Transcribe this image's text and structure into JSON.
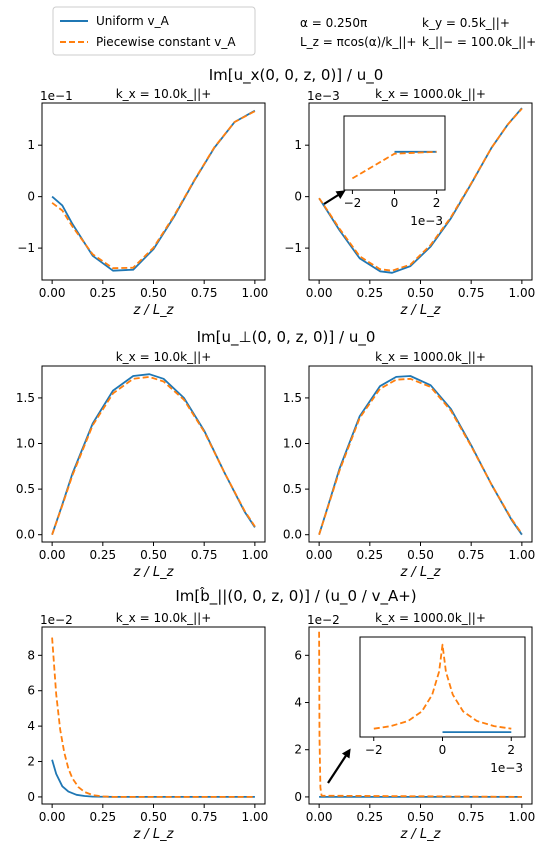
{
  "header": {
    "line1_left": "α = 0.250π",
    "line1_right": "k_y = 0.5k_||+",
    "line2_left": "L_z = πcos(α)/k_||+",
    "line2_right": "k_||− = 100.0k_||+"
  },
  "legend": {
    "placement": "top-left",
    "entries": [
      {
        "label": "Uniform v_A",
        "color": "#1f77b4",
        "style": "solid"
      },
      {
        "label": "Piecewise constant v_A",
        "color": "#ff7f0e",
        "style": "dashed"
      }
    ]
  },
  "row_titles": [
    "Im[u_x(0, 0, z, 0)] / u_0",
    "Im[u_⊥(0, 0, z, 0)] / u_0",
    "Im[b̂_||(0, 0, z, 0)] / (u_0 / v_A+)"
  ],
  "colors": {
    "uniform": "#1f77b4",
    "piecewise": "#ff7f0e"
  },
  "chart_data": [
    {
      "type": "line",
      "title": "k_x = 10.0k_||+",
      "xlabel": "z / L_z",
      "ylabel": "",
      "offset_text": "1e−1",
      "xlim": [
        -0.05,
        1.05
      ],
      "ylim": [
        -1.62,
        1.82
      ],
      "xticks": [
        0,
        0.25,
        0.5,
        0.75,
        1.0
      ],
      "xtick_labels": [
        "0.00",
        "0.25",
        "0.50",
        "0.75",
        "1.00"
      ],
      "yticks": [
        -1,
        0,
        1
      ],
      "ytick_labels": [
        "−1",
        "0",
        "1"
      ],
      "series": [
        {
          "name": "Uniform v_A",
          "x": [
            0,
            0.05,
            0.1,
            0.2,
            0.3,
            0.4,
            0.5,
            0.6,
            0.7,
            0.8,
            0.9,
            1.0
          ],
          "y": [
            0,
            -0.17,
            -0.53,
            -1.15,
            -1.44,
            -1.42,
            -1.02,
            -0.4,
            0.3,
            0.95,
            1.45,
            1.67
          ]
        },
        {
          "name": "Piecewise constant v_A",
          "x": [
            0,
            0.05,
            0.1,
            0.2,
            0.3,
            0.4,
            0.5,
            0.6,
            0.7,
            0.8,
            0.9,
            1.0
          ],
          "y": [
            -0.12,
            -0.27,
            -0.58,
            -1.12,
            -1.39,
            -1.38,
            -0.99,
            -0.38,
            0.31,
            0.96,
            1.45,
            1.66
          ]
        }
      ]
    },
    {
      "type": "line",
      "title": "k_x = 1000.0k_||+",
      "xlabel": "z / L_z",
      "ylabel": "",
      "offset_text": "1e−3",
      "xlim": [
        -0.05,
        1.05
      ],
      "ylim": [
        -1.62,
        1.82
      ],
      "xticks": [
        0,
        0.25,
        0.5,
        0.75,
        1.0
      ],
      "xtick_labels": [
        "0.00",
        "0.25",
        "0.50",
        "0.75",
        "1.00"
      ],
      "yticks": [
        -1,
        0,
        1
      ],
      "ytick_labels": [
        "−1",
        "0",
        "1"
      ],
      "series": [
        {
          "name": "Uniform v_A",
          "x": [
            0,
            0.05,
            0.1,
            0.2,
            0.3,
            0.36,
            0.45,
            0.55,
            0.65,
            0.75,
            0.85,
            0.93,
            1.0
          ],
          "y": [
            -0.03,
            -0.34,
            -0.65,
            -1.2,
            -1.45,
            -1.48,
            -1.35,
            -0.97,
            -0.42,
            0.25,
            0.95,
            1.4,
            1.72
          ]
        },
        {
          "name": "Piecewise constant v_A",
          "x": [
            0,
            0.05,
            0.1,
            0.2,
            0.3,
            0.36,
            0.45,
            0.55,
            0.65,
            0.75,
            0.85,
            0.93,
            1.0
          ],
          "y": [
            -0.03,
            -0.32,
            -0.62,
            -1.16,
            -1.41,
            -1.44,
            -1.32,
            -0.94,
            -0.4,
            0.26,
            0.95,
            1.4,
            1.71
          ]
        }
      ],
      "inset": {
        "xlim": [
          -2.4,
          2.4
        ],
        "ylim": [
          -1.6,
          1.6
        ],
        "xticks": [
          -2,
          0,
          2
        ],
        "xtick_labels": [
          "−2",
          "0",
          "2"
        ],
        "offset_text": "1e−3",
        "series": [
          {
            "name": "Uniform v_A",
            "x": [
              0,
              2
            ],
            "y": [
              0.05,
              0.05
            ]
          },
          {
            "name": "Piecewise constant v_A",
            "x": [
              -2,
              0,
              2
            ],
            "y": [
              -1.1,
              -0.03,
              0.05
            ]
          }
        ]
      }
    },
    {
      "type": "line",
      "title": "k_x = 10.0k_||+",
      "xlabel": "z / L_z",
      "ylabel": "",
      "xlim": [
        -0.05,
        1.05
      ],
      "ylim": [
        -0.08,
        1.85
      ],
      "xticks": [
        0,
        0.25,
        0.5,
        0.75,
        1.0
      ],
      "xtick_labels": [
        "0.00",
        "0.25",
        "0.50",
        "0.75",
        "1.00"
      ],
      "yticks": [
        0,
        0.5,
        1.0,
        1.5
      ],
      "ytick_labels": [
        "0.0",
        "0.5",
        "1.0",
        "1.5"
      ],
      "series": [
        {
          "name": "Uniform v_A",
          "x": [
            0,
            0.05,
            0.1,
            0.2,
            0.3,
            0.4,
            0.48,
            0.55,
            0.65,
            0.75,
            0.85,
            0.95,
            1.0
          ],
          "y": [
            0,
            0.33,
            0.67,
            1.22,
            1.58,
            1.74,
            1.76,
            1.71,
            1.5,
            1.14,
            0.68,
            0.25,
            0.08
          ]
        },
        {
          "name": "Piecewise constant v_A",
          "x": [
            0,
            0.05,
            0.1,
            0.2,
            0.3,
            0.4,
            0.48,
            0.55,
            0.65,
            0.75,
            0.85,
            0.95,
            1.0
          ],
          "y": [
            0,
            0.32,
            0.65,
            1.2,
            1.55,
            1.71,
            1.73,
            1.68,
            1.48,
            1.13,
            0.68,
            0.26,
            0.09
          ]
        }
      ]
    },
    {
      "type": "line",
      "title": "k_x = 1000.0k_||+",
      "xlabel": "z / L_z",
      "ylabel": "",
      "xlim": [
        -0.05,
        1.05
      ],
      "ylim": [
        -0.08,
        1.85
      ],
      "xticks": [
        0,
        0.25,
        0.5,
        0.75,
        1.0
      ],
      "xtick_labels": [
        "0.00",
        "0.25",
        "0.50",
        "0.75",
        "1.00"
      ],
      "yticks": [
        0,
        0.5,
        1.0,
        1.5
      ],
      "ytick_labels": [
        "0.0",
        "0.5",
        "1.0",
        "1.5"
      ],
      "series": [
        {
          "name": "Uniform v_A",
          "x": [
            0,
            0.05,
            0.1,
            0.2,
            0.3,
            0.38,
            0.45,
            0.55,
            0.65,
            0.75,
            0.85,
            0.95,
            1.0
          ],
          "y": [
            0,
            0.36,
            0.72,
            1.3,
            1.63,
            1.73,
            1.74,
            1.64,
            1.38,
            0.98,
            0.55,
            0.16,
            0.0
          ]
        },
        {
          "name": "Piecewise constant v_A",
          "x": [
            0,
            0.05,
            0.1,
            0.2,
            0.3,
            0.38,
            0.45,
            0.55,
            0.65,
            0.75,
            0.85,
            0.95,
            1.0
          ],
          "y": [
            0,
            0.35,
            0.7,
            1.28,
            1.6,
            1.7,
            1.71,
            1.62,
            1.36,
            0.97,
            0.55,
            0.17,
            0.01
          ]
        }
      ]
    },
    {
      "type": "line",
      "title": "k_x = 10.0k_||+",
      "xlabel": "z / L_z",
      "ylabel": "",
      "offset_text": "1e−2",
      "xlim": [
        -0.05,
        1.05
      ],
      "ylim": [
        -0.4,
        9.6
      ],
      "xticks": [
        0,
        0.25,
        0.5,
        0.75,
        1.0
      ],
      "xtick_labels": [
        "0.00",
        "0.25",
        "0.50",
        "0.75",
        "1.00"
      ],
      "yticks": [
        0,
        2,
        4,
        6,
        8
      ],
      "ytick_labels": [
        "0",
        "2",
        "4",
        "6",
        "8"
      ],
      "series": [
        {
          "name": "Uniform v_A",
          "x": [
            0,
            0.02,
            0.05,
            0.08,
            0.12,
            0.16,
            0.2,
            0.3,
            1.0
          ],
          "y": [
            2.1,
            1.3,
            0.6,
            0.3,
            0.12,
            0.05,
            0.02,
            0.0,
            0.0
          ]
        },
        {
          "name": "Piecewise constant v_A",
          "x": [
            0,
            0.02,
            0.04,
            0.06,
            0.08,
            0.1,
            0.13,
            0.16,
            0.2,
            0.25,
            0.3,
            1.0
          ],
          "y": [
            9.0,
            5.8,
            3.8,
            2.5,
            1.6,
            1.05,
            0.55,
            0.28,
            0.1,
            0.03,
            0.0,
            0.0
          ]
        }
      ]
    },
    {
      "type": "line",
      "title": "k_x = 1000.0k_||+",
      "xlabel": "z / L_z",
      "ylabel": "",
      "offset_text": "1e−2",
      "xlim": [
        -0.05,
        1.05
      ],
      "ylim": [
        -0.3,
        7.2
      ],
      "xticks": [
        0,
        0.25,
        0.5,
        0.75,
        1.0
      ],
      "xtick_labels": [
        "0.00",
        "0.25",
        "0.50",
        "0.75",
        "1.00"
      ],
      "yticks": [
        0,
        2,
        4,
        6
      ],
      "ytick_labels": [
        "0",
        "2",
        "4",
        "6"
      ],
      "series": [
        {
          "name": "Uniform v_A",
          "x": [
            0,
            1.0
          ],
          "y": [
            0.0,
            0.0
          ]
        },
        {
          "name": "Piecewise constant v_A",
          "x": [
            0,
            0.002,
            0.006,
            0.012,
            1.0
          ],
          "y": [
            7.0,
            2.5,
            0.4,
            0.05,
            0.0
          ]
        }
      ],
      "inset": {
        "xlim": [
          -2.4,
          2.4
        ],
        "ylim": [
          -0.3,
          7.5
        ],
        "xticks": [
          -2,
          0,
          2
        ],
        "xtick_labels": [
          "−2",
          "0",
          "2"
        ],
        "offset_text": "1e−3",
        "series": [
          {
            "name": "Uniform v_A",
            "x": [
              0,
              2
            ],
            "y": [
              0.08,
              0.08
            ]
          },
          {
            "name": "Piecewise constant v_A",
            "x": [
              -2,
              -1.5,
              -1.0,
              -0.6,
              -0.3,
              -0.1,
              0,
              0.1,
              0.3,
              0.6,
              1.0,
              1.5,
              2
            ],
            "y": [
              0.35,
              0.55,
              0.95,
              1.7,
              3.0,
              4.8,
              6.9,
              4.8,
              3.0,
              1.7,
              0.95,
              0.55,
              0.35
            ]
          }
        ]
      }
    }
  ]
}
